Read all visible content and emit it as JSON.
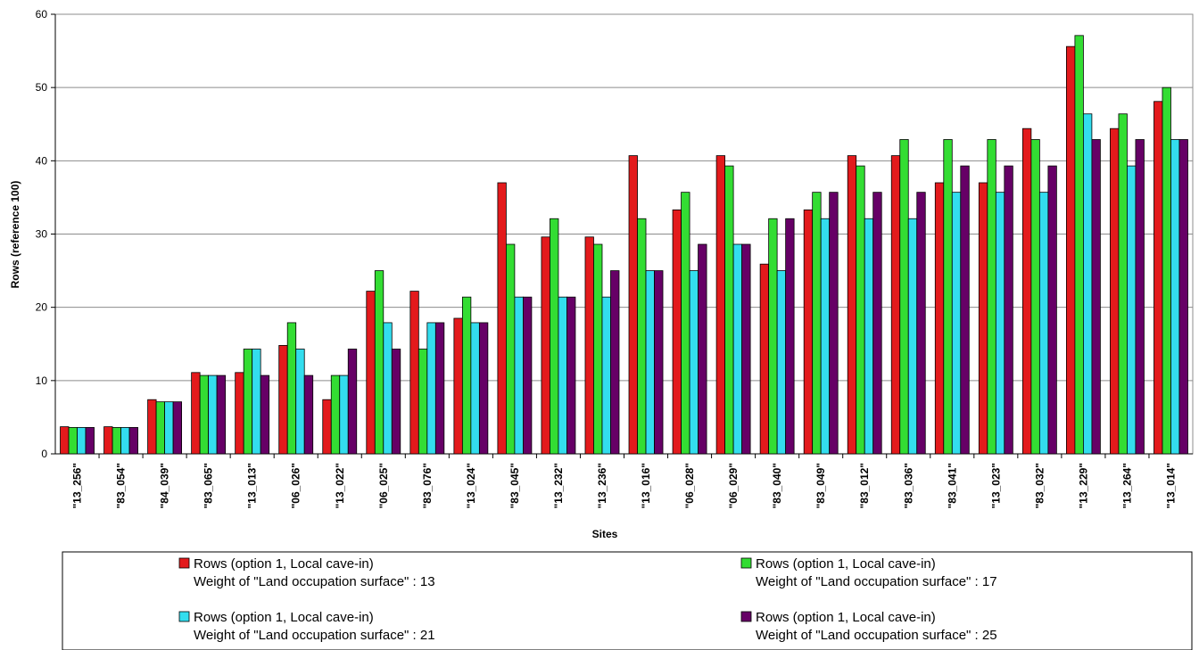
{
  "chart_data": {
    "type": "bar",
    "title": "",
    "xlabel": "Sites",
    "ylabel": "Rows (reference 100)",
    "ylim": [
      0,
      60
    ],
    "yticks": [
      0,
      10,
      20,
      30,
      40,
      50,
      60
    ],
    "grid": true,
    "legend_position": "bottom",
    "categories": [
      "\"13_256\"",
      "\"83_054\"",
      "\"84_039\"",
      "\"83_065\"",
      "\"13_013\"",
      "\"06_026\"",
      "\"13_022\"",
      "\"06_025\"",
      "\"83_076\"",
      "\"13_024\"",
      "\"83_045\"",
      "\"13_232\"",
      "\"13_236\"",
      "\"13_016\"",
      "\"06_028\"",
      "\"06_029\"",
      "\"83_040\"",
      "\"83_049\"",
      "\"83_012\"",
      "\"83_036\"",
      "\"83_041\"",
      "\"13_023\"",
      "\"83_032\"",
      "\"13_229\"",
      "\"13_264\"",
      "\"13_014\""
    ],
    "series": [
      {
        "name": "Rows (option 1, Local cave-in)",
        "subtitle": "Weight of \"Land occupation surface\" : 13",
        "color": "#e31a1c",
        "values": [
          3.7,
          3.7,
          7.4,
          11.1,
          11.1,
          14.8,
          7.4,
          22.2,
          22.2,
          18.5,
          37.0,
          29.6,
          29.6,
          40.7,
          33.3,
          40.7,
          25.9,
          33.3,
          40.7,
          40.7,
          37.0,
          37.0,
          44.4,
          55.6,
          44.4,
          48.1
        ]
      },
      {
        "name": "Rows (option 1, Local cave-in)",
        "subtitle": "Weight of \"Land occupation surface\" : 17",
        "color": "#33dd33",
        "values": [
          3.6,
          3.6,
          7.1,
          10.7,
          14.3,
          17.9,
          10.7,
          25.0,
          14.3,
          21.4,
          28.6,
          32.1,
          28.6,
          32.1,
          35.7,
          39.3,
          32.1,
          35.7,
          39.3,
          42.9,
          42.9,
          42.9,
          42.9,
          57.1,
          46.4,
          50.0
        ]
      },
      {
        "name": "Rows (option 1, Local cave-in)",
        "subtitle": "Weight of \"Land occupation surface\" : 21",
        "color": "#33ddee",
        "values": [
          3.6,
          3.6,
          7.1,
          10.7,
          14.3,
          14.3,
          10.7,
          17.9,
          17.9,
          17.9,
          21.4,
          21.4,
          21.4,
          25.0,
          25.0,
          28.6,
          25.0,
          32.1,
          32.1,
          32.1,
          35.7,
          35.7,
          35.7,
          46.4,
          39.3,
          42.9
        ]
      },
      {
        "name": "Rows (option 1, Local cave-in)",
        "subtitle": "Weight of \"Land occupation surface\" : 25",
        "color": "#660066",
        "values": [
          3.6,
          3.6,
          7.1,
          10.7,
          10.7,
          10.7,
          14.3,
          14.3,
          17.9,
          17.9,
          21.4,
          21.4,
          25.0,
          25.0,
          28.6,
          28.6,
          32.1,
          35.7,
          35.7,
          35.7,
          39.3,
          39.3,
          39.3,
          42.9,
          42.9,
          42.9
        ]
      }
    ]
  }
}
